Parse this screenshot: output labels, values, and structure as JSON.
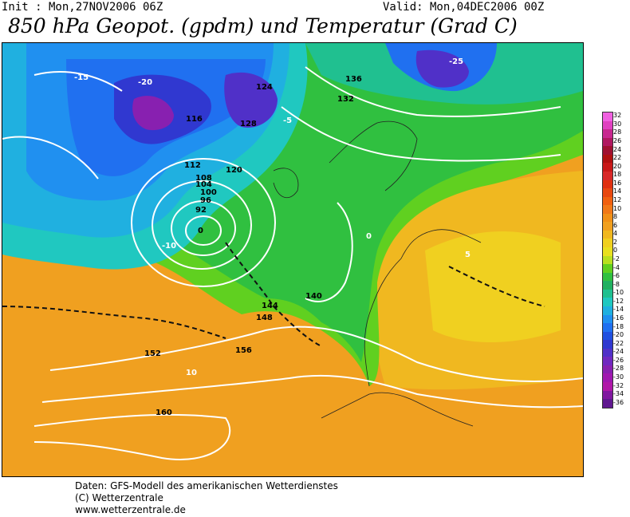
{
  "header": {
    "init": "Init : Mon,27NOV2006 06Z",
    "valid": "Valid: Mon,04DEC2006 00Z",
    "title": "850 hPa Geopot. (gpdm) und Temperatur (Grad C)"
  },
  "colorbar": {
    "labels": [
      "32",
      "30",
      "28",
      "26",
      "24",
      "22",
      "20",
      "18",
      "16",
      "14",
      "12",
      "10",
      "8",
      "6",
      "4",
      "2",
      "0",
      "-2",
      "-4",
      "-6",
      "-8",
      "-10",
      "-12",
      "-14",
      "-16",
      "-18",
      "-20",
      "-22",
      "-24",
      "-26",
      "-28",
      "-30",
      "-32",
      "-34",
      "-36"
    ],
    "colors": [
      "#f060e0",
      "#e040c0",
      "#c82890",
      "#b01860",
      "#a01030",
      "#b01010",
      "#c81818",
      "#d82828",
      "#e03010",
      "#e84810",
      "#f06010",
      "#f07818",
      "#f09018",
      "#f0a020",
      "#f0b820",
      "#f0d020",
      "#e8e020",
      "#b8e020",
      "#60d020",
      "#30c040",
      "#20b060",
      "#20c090",
      "#20c8c0",
      "#20b0e0",
      "#2090f0",
      "#2070f0",
      "#2050e0",
      "#3038d0",
      "#5030c8",
      "#7028c0",
      "#8820b0",
      "#a018b0",
      "#b018a8",
      "#8018a0",
      "#601890"
    ]
  },
  "geopotential_labels": [
    "92",
    "96",
    "100",
    "104",
    "108",
    "112",
    "116",
    "120",
    "124",
    "128",
    "132",
    "136",
    "140",
    "144",
    "148",
    "152",
    "156",
    "160"
  ],
  "temperature_labels": [
    "-25",
    "-20",
    "-15",
    "-10",
    "-5",
    "0",
    "5",
    "10"
  ],
  "footer": {
    "line1": "Daten: GFS-Modell des amerikanischen Wetterdienstes",
    "line2": "(C) Wetterzentrale",
    "line3": "www.wetterzentrale.de"
  }
}
